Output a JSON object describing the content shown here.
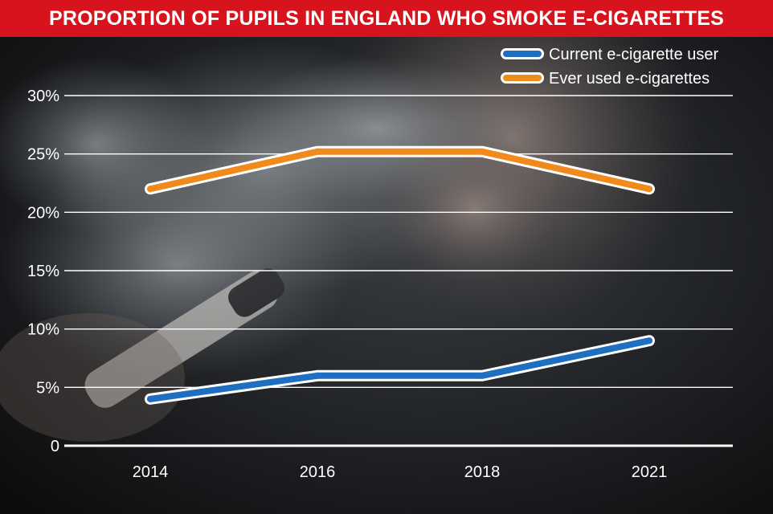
{
  "header": {
    "title": "PROPORTION OF PUPILS IN ENGLAND WHO SMOKE E-CIGARETTES"
  },
  "chart_data": {
    "type": "line",
    "title": "PROPORTION OF PUPILS IN ENGLAND WHO SMOKE E-CIGARETTES",
    "xlabel": "",
    "ylabel": "",
    "categories": [
      "2014",
      "2016",
      "2018",
      "2021"
    ],
    "ylim": [
      0,
      30
    ],
    "yticks": [
      {
        "value": 0,
        "label": "0"
      },
      {
        "value": 5,
        "label": "5%"
      },
      {
        "value": 10,
        "label": "10%"
      },
      {
        "value": 15,
        "label": "15%"
      },
      {
        "value": 20,
        "label": "20%"
      },
      {
        "value": 25,
        "label": "25%"
      },
      {
        "value": 30,
        "label": "30%"
      }
    ],
    "grid": true,
    "legend_position": "top-right",
    "series": [
      {
        "name": "Current e-cigarette user",
        "color": "#1f6fc0",
        "values": [
          4,
          6,
          6,
          9
        ]
      },
      {
        "name": "Ever used e-cigarettes",
        "color": "#f08a1c",
        "values": [
          22,
          25.2,
          25.2,
          22
        ]
      }
    ],
    "background": "photo of a person exhaling vapour from an e-cigarette"
  }
}
